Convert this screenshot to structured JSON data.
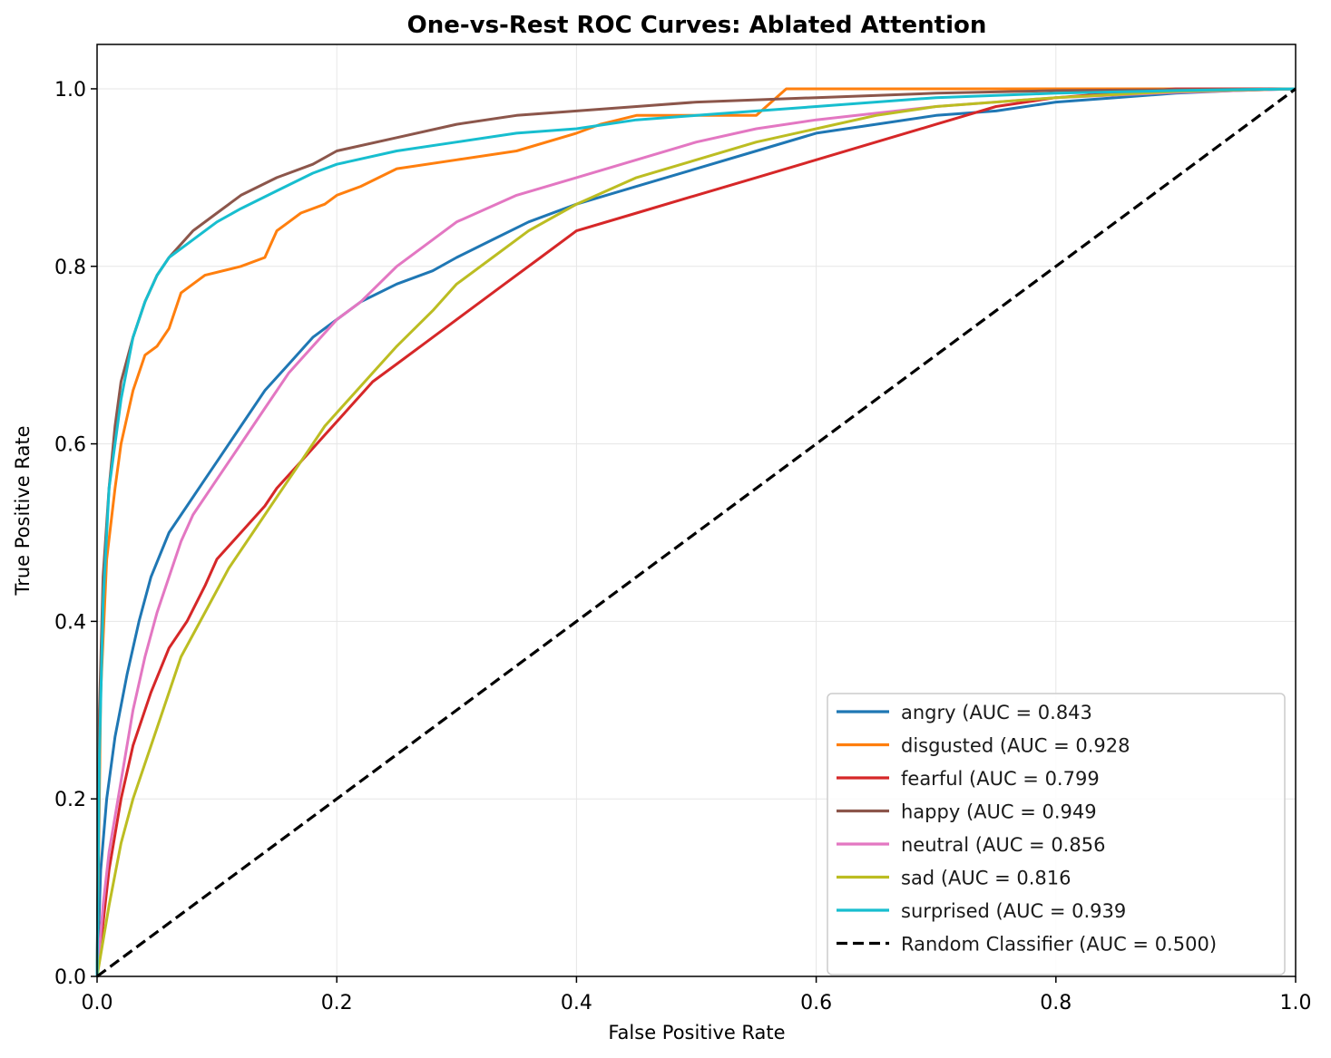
{
  "chart_data": {
    "type": "line",
    "title": "One-vs-Rest ROC Curves: Ablated Attention",
    "xlabel": "False Positive Rate",
    "ylabel": "True Positive Rate",
    "xlim": [
      0,
      1
    ],
    "ylim": [
      0,
      1.05
    ],
    "xticks": [
      0.0,
      0.2,
      0.4,
      0.6,
      0.8,
      1.0
    ],
    "yticks": [
      0.0,
      0.2,
      0.4,
      0.6,
      0.8,
      1.0
    ],
    "xtick_labels": [
      "0.0",
      "0.2",
      "0.4",
      "0.6",
      "0.8",
      "1.0"
    ],
    "ytick_labels": [
      "0.0",
      "0.2",
      "0.4",
      "0.6",
      "0.8",
      "1.0"
    ],
    "grid": true,
    "legend_position": "bottom-right",
    "series": [
      {
        "name": "angry (AUC = 0.843",
        "color": "#1f77b4",
        "style": "solid",
        "x": [
          0,
          0.003,
          0.008,
          0.015,
          0.025,
          0.035,
          0.045,
          0.06,
          0.075,
          0.09,
          0.1,
          0.12,
          0.14,
          0.16,
          0.18,
          0.2,
          0.22,
          0.25,
          0.28,
          0.3,
          0.33,
          0.36,
          0.4,
          0.45,
          0.5,
          0.55,
          0.6,
          0.65,
          0.7,
          0.75,
          0.8,
          0.85,
          0.9,
          0.95,
          1.0
        ],
        "y": [
          0,
          0.12,
          0.2,
          0.27,
          0.34,
          0.4,
          0.45,
          0.5,
          0.53,
          0.56,
          0.58,
          0.62,
          0.66,
          0.69,
          0.72,
          0.74,
          0.76,
          0.78,
          0.795,
          0.81,
          0.83,
          0.85,
          0.87,
          0.89,
          0.91,
          0.93,
          0.95,
          0.96,
          0.97,
          0.975,
          0.985,
          0.99,
          0.995,
          0.998,
          1.0
        ]
      },
      {
        "name": "disgusted (AUC = 0.928",
        "color": "#ff7f0e",
        "style": "solid",
        "x": [
          0,
          0.003,
          0.008,
          0.015,
          0.02,
          0.03,
          0.04,
          0.05,
          0.06,
          0.07,
          0.08,
          0.09,
          0.12,
          0.14,
          0.15,
          0.16,
          0.17,
          0.19,
          0.2,
          0.22,
          0.25,
          0.3,
          0.35,
          0.4,
          0.42,
          0.45,
          0.5,
          0.55,
          0.575,
          0.6,
          0.7,
          1.0
        ],
        "y": [
          0,
          0.32,
          0.47,
          0.55,
          0.6,
          0.66,
          0.7,
          0.71,
          0.73,
          0.77,
          0.78,
          0.79,
          0.8,
          0.81,
          0.84,
          0.85,
          0.86,
          0.87,
          0.88,
          0.89,
          0.91,
          0.92,
          0.93,
          0.95,
          0.96,
          0.97,
          0.97,
          0.97,
          1.0,
          1.0,
          1.0,
          1.0
        ]
      },
      {
        "name": "fearful (AUC = 0.799",
        "color": "#d62728",
        "style": "solid",
        "x": [
          0,
          0.005,
          0.01,
          0.02,
          0.03,
          0.045,
          0.06,
          0.075,
          0.09,
          0.1,
          0.12,
          0.14,
          0.15,
          0.17,
          0.19,
          0.21,
          0.23,
          0.25,
          0.27,
          0.29,
          0.31,
          0.34,
          0.37,
          0.4,
          0.45,
          0.5,
          0.55,
          0.6,
          0.65,
          0.7,
          0.75,
          0.8,
          0.85,
          0.9,
          1.0
        ],
        "y": [
          0,
          0.06,
          0.12,
          0.2,
          0.26,
          0.32,
          0.37,
          0.4,
          0.44,
          0.47,
          0.5,
          0.53,
          0.55,
          0.58,
          0.61,
          0.64,
          0.67,
          0.69,
          0.71,
          0.73,
          0.75,
          0.78,
          0.81,
          0.84,
          0.86,
          0.88,
          0.9,
          0.92,
          0.94,
          0.96,
          0.98,
          0.99,
          0.995,
          1.0,
          1.0
        ]
      },
      {
        "name": "happy (AUC = 0.949",
        "color": "#8c564b",
        "style": "solid",
        "x": [
          0,
          0.002,
          0.005,
          0.01,
          0.015,
          0.02,
          0.03,
          0.04,
          0.05,
          0.06,
          0.08,
          0.1,
          0.12,
          0.15,
          0.18,
          0.2,
          0.25,
          0.3,
          0.35,
          0.4,
          0.45,
          0.5,
          0.6,
          0.7,
          0.8,
          0.9,
          1.0
        ],
        "y": [
          0,
          0.3,
          0.45,
          0.55,
          0.62,
          0.67,
          0.72,
          0.76,
          0.79,
          0.81,
          0.84,
          0.86,
          0.88,
          0.9,
          0.915,
          0.93,
          0.945,
          0.96,
          0.97,
          0.975,
          0.98,
          0.985,
          0.99,
          0.995,
          0.998,
          0.999,
          1.0
        ]
      },
      {
        "name": "neutral (AUC = 0.856",
        "color": "#e377c2",
        "style": "solid",
        "x": [
          0,
          0.005,
          0.01,
          0.02,
          0.03,
          0.04,
          0.05,
          0.06,
          0.07,
          0.08,
          0.1,
          0.12,
          0.14,
          0.16,
          0.18,
          0.2,
          0.22,
          0.25,
          0.28,
          0.3,
          0.35,
          0.4,
          0.45,
          0.5,
          0.55,
          0.6,
          0.7,
          0.8,
          0.9,
          1.0
        ],
        "y": [
          0,
          0.08,
          0.14,
          0.22,
          0.3,
          0.36,
          0.41,
          0.45,
          0.49,
          0.52,
          0.56,
          0.6,
          0.64,
          0.68,
          0.71,
          0.74,
          0.76,
          0.8,
          0.83,
          0.85,
          0.88,
          0.9,
          0.92,
          0.94,
          0.955,
          0.965,
          0.98,
          0.99,
          0.996,
          1.0
        ]
      },
      {
        "name": "sad (AUC = 0.816",
        "color": "#bcbd22",
        "style": "solid",
        "x": [
          0,
          0.005,
          0.01,
          0.02,
          0.03,
          0.05,
          0.07,
          0.09,
          0.11,
          0.13,
          0.15,
          0.17,
          0.19,
          0.21,
          0.23,
          0.25,
          0.28,
          0.3,
          0.33,
          0.36,
          0.4,
          0.45,
          0.5,
          0.55,
          0.6,
          0.65,
          0.7,
          0.8,
          0.9,
          1.0
        ],
        "y": [
          0,
          0.04,
          0.08,
          0.15,
          0.2,
          0.28,
          0.36,
          0.41,
          0.46,
          0.5,
          0.54,
          0.58,
          0.62,
          0.65,
          0.68,
          0.71,
          0.75,
          0.78,
          0.81,
          0.84,
          0.87,
          0.9,
          0.92,
          0.94,
          0.955,
          0.97,
          0.98,
          0.99,
          0.997,
          1.0
        ]
      },
      {
        "name": "surprised (AUC = 0.939",
        "color": "#17becf",
        "style": "solid",
        "x": [
          0,
          0.002,
          0.005,
          0.01,
          0.015,
          0.02,
          0.03,
          0.04,
          0.05,
          0.06,
          0.08,
          0.1,
          0.12,
          0.15,
          0.18,
          0.2,
          0.25,
          0.3,
          0.35,
          0.4,
          0.45,
          0.5,
          0.6,
          0.7,
          0.8,
          0.9,
          1.0
        ],
        "y": [
          0,
          0.25,
          0.42,
          0.55,
          0.6,
          0.65,
          0.72,
          0.76,
          0.79,
          0.81,
          0.83,
          0.85,
          0.865,
          0.885,
          0.905,
          0.915,
          0.93,
          0.94,
          0.95,
          0.955,
          0.965,
          0.97,
          0.98,
          0.99,
          0.995,
          0.998,
          1.0
        ]
      },
      {
        "name": "Random Classifier (AUC = 0.500)",
        "color": "#000000",
        "style": "dashed",
        "x": [
          0,
          1
        ],
        "y": [
          0,
          1
        ]
      }
    ]
  }
}
